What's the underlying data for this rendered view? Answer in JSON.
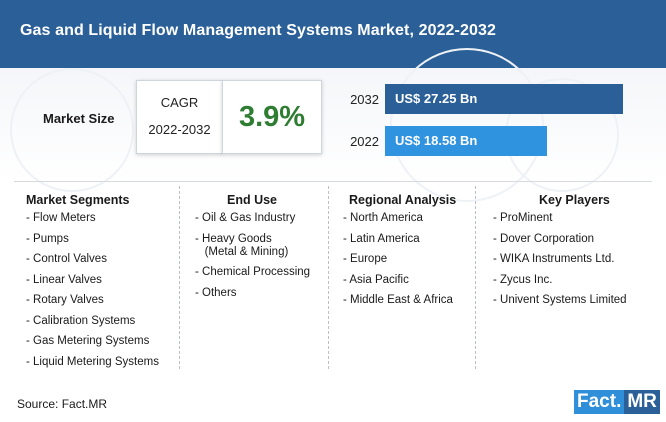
{
  "header": {
    "title": "Gas and Liquid Flow Management Systems Market, 2022-2032"
  },
  "market_size": {
    "label": "Market Size",
    "cagr_label": "CAGR",
    "cagr_years": "2022-2032",
    "cagr_value": "3.9%"
  },
  "colors": {
    "header_bg": "#2a5f97",
    "bar_2032": "#2a5f97",
    "bar_2022": "#2f93e0",
    "cagr_green": "#2e7d32"
  },
  "chart_data": {
    "type": "bar",
    "orientation": "horizontal",
    "categories": [
      "2032",
      "2022"
    ],
    "values": [
      27.25,
      18.58
    ],
    "value_labels": [
      "US$ 27.25 Bn",
      "US$ 18.58 Bn"
    ],
    "unit": "US$ Bn",
    "xlim": [
      0,
      27.25
    ]
  },
  "segments": [
    {
      "heading": "Market Segments",
      "items": [
        "- Flow Meters",
        "- Pumps",
        "- Control Valves",
        "- Linear Valves",
        "- Rotary Valves",
        "- Calibration Systems",
        "- Gas Metering Systems",
        "- Liquid Metering Systems"
      ]
    },
    {
      "heading": "End Use",
      "items": [
        "- Oil & Gas Industry",
        "- Heavy Goods\n   (Metal & Mining)",
        "- Chemical Processing",
        "- Others"
      ]
    },
    {
      "heading": "Regional Analysis",
      "items": [
        "- North America",
        "- Latin America",
        "- Europe",
        "- Asia Pacific",
        "- Middle East & Africa"
      ]
    },
    {
      "heading": "Key Players",
      "items": [
        "- ProMinent",
        "- Dover Corporation",
        "- WIKA Instruments Ltd.",
        "- Zycus Inc.",
        "- Univent Systems Limited"
      ]
    }
  ],
  "footer": {
    "source": "Source: Fact.MR",
    "logo_part1": "Fact.",
    "logo_part2": "MR"
  }
}
